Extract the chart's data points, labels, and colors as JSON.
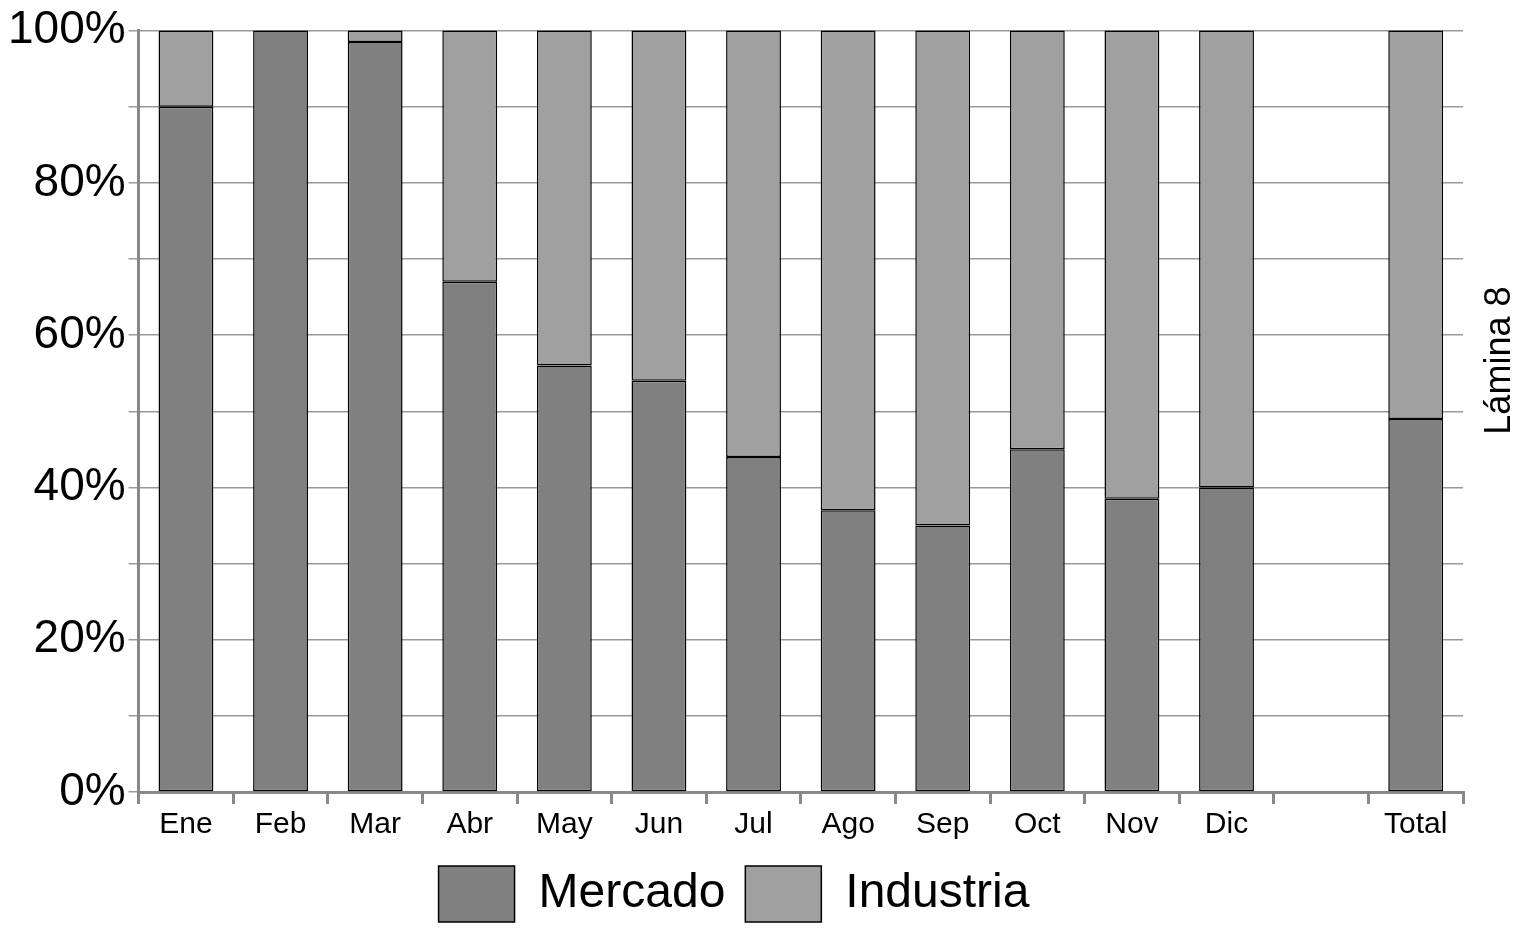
{
  "chart_data": {
    "type": "bar",
    "stacked": true,
    "categories": [
      "Ene",
      "Feb",
      "Mar",
      "Abr",
      "May",
      "Jun",
      "Jul",
      "Ago",
      "Sep",
      "Oct",
      "Nov",
      "Dic",
      null,
      "Total"
    ],
    "series": [
      {
        "name": "Mercado",
        "color": "#808080",
        "values": [
          90,
          100,
          98.5,
          67,
          56,
          54,
          44,
          37,
          35,
          45,
          38.5,
          40,
          0,
          49
        ]
      },
      {
        "name": "Industria",
        "color": "#a0a0a0",
        "values": [
          10,
          0,
          1.5,
          33,
          44,
          46,
          56,
          63,
          65,
          55,
          61.5,
          60,
          0,
          51
        ]
      }
    ],
    "ylim": [
      0,
      100
    ],
    "yticks": [
      {
        "value": 0,
        "label": "0%"
      },
      {
        "value": 10,
        "label": null
      },
      {
        "value": 20,
        "label": "20%"
      },
      {
        "value": 30,
        "label": null
      },
      {
        "value": 40,
        "label": "40%"
      },
      {
        "value": 50,
        "label": null
      },
      {
        "value": 60,
        "label": "60%"
      },
      {
        "value": 70,
        "label": null
      },
      {
        "value": 80,
        "label": "80%"
      },
      {
        "value": 90,
        "label": null
      },
      {
        "value": 100,
        "label": "100%"
      }
    ],
    "grid": "y",
    "legend": "bottom",
    "annotations": [
      "Lámina 8"
    ]
  }
}
